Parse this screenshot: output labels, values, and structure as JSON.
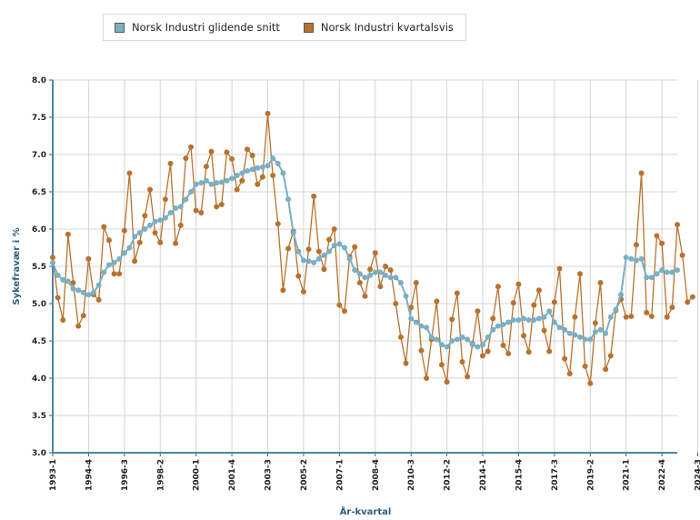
{
  "chart_data": {
    "type": "line",
    "xlabel": "År-kvartal",
    "ylabel": "Sykefravær i %",
    "ylim": [
      3.0,
      8.0
    ],
    "yticks": [
      "3.0",
      "3.5",
      "4.0",
      "4.5",
      "5.0",
      "5.5",
      "6.0",
      "6.5",
      "7.0",
      "7.5",
      "8.0"
    ],
    "xtick_labels": [
      "1993-1",
      "1994-4",
      "1996-3",
      "1998-2",
      "2000-1",
      "2001-4",
      "2003-3",
      "2005-2",
      "2007-1",
      "2008-4",
      "2010-3",
      "2012-2",
      "2014-1",
      "2015-4",
      "2017-3",
      "2019-2",
      "2021-1",
      "2022-4",
      "2024-3"
    ],
    "grid": true,
    "legend_position": "top-left",
    "series": [
      {
        "name": "Norsk Industri glidende snitt",
        "color": "#7aafc4",
        "values": [
          5.55,
          5.38,
          5.32,
          5.3,
          5.2,
          5.18,
          5.15,
          5.12,
          5.15,
          5.25,
          5.42,
          5.52,
          5.55,
          5.6,
          5.68,
          5.75,
          5.9,
          5.95,
          6.0,
          6.05,
          6.1,
          6.12,
          6.15,
          6.22,
          6.28,
          6.3,
          6.4,
          6.5,
          6.6,
          6.62,
          6.65,
          6.6,
          6.62,
          6.63,
          6.65,
          6.68,
          6.72,
          6.75,
          6.78,
          6.8,
          6.82,
          6.83,
          6.85,
          6.95,
          6.88,
          6.75,
          6.4,
          5.95,
          5.7,
          5.58,
          5.57,
          5.55,
          5.6,
          5.65,
          5.7,
          5.78,
          5.8,
          5.75,
          5.6,
          5.45,
          5.4,
          5.35,
          5.38,
          5.42,
          5.42,
          5.38,
          5.35,
          5.35,
          5.28,
          5.1,
          4.8,
          4.75,
          4.7,
          4.68,
          4.55,
          4.52,
          4.45,
          4.42,
          4.5,
          4.52,
          4.55,
          4.52,
          4.45,
          4.42,
          4.45,
          4.55,
          4.65,
          4.7,
          4.72,
          4.75,
          4.78,
          4.78,
          4.8,
          4.78,
          4.78,
          4.8,
          4.82,
          4.9,
          4.75,
          4.68,
          4.65,
          4.6,
          4.58,
          4.55,
          4.52,
          4.52,
          4.62,
          4.65,
          4.6,
          4.82,
          4.92,
          5.12,
          5.62,
          5.6,
          5.58,
          5.6,
          5.35,
          5.35,
          5.4,
          5.45,
          5.42,
          5.42,
          5.45
        ]
      },
      {
        "name": "Norsk Industri kvartalsvis",
        "color": "#b8722e",
        "values": [
          5.62,
          5.08,
          4.78,
          5.93,
          5.28,
          4.7,
          4.84,
          5.6,
          5.12,
          5.05,
          6.03,
          5.85,
          5.4,
          5.4,
          5.98,
          6.75,
          5.57,
          5.82,
          6.18,
          6.53,
          5.95,
          5.82,
          6.4,
          6.88,
          5.81,
          6.05,
          6.95,
          7.1,
          6.25,
          6.22,
          6.84,
          7.04,
          6.3,
          6.33,
          7.03,
          6.94,
          6.53,
          6.65,
          7.07,
          6.99,
          6.6,
          6.7,
          7.55,
          6.72,
          6.07,
          5.18,
          5.74,
          5.97,
          5.37,
          5.16,
          5.73,
          6.44,
          5.7,
          5.46,
          5.86,
          6.0,
          4.98,
          4.9,
          5.63,
          5.76,
          5.28,
          5.1,
          5.46,
          5.68,
          5.23,
          5.5,
          5.45,
          5.0,
          4.55,
          4.2,
          4.95,
          5.28,
          4.37,
          4.0,
          4.52,
          5.03,
          4.18,
          3.95,
          4.79,
          5.14,
          4.22,
          4.02,
          4.46,
          4.9,
          4.3,
          4.36,
          4.8,
          5.23,
          4.44,
          4.33,
          5.01,
          5.26,
          4.57,
          4.35,
          4.98,
          5.18,
          4.64,
          4.36,
          5.02,
          5.47,
          4.26,
          4.06,
          4.82,
          5.4,
          4.16,
          3.93,
          4.74,
          5.28,
          4.12,
          4.3,
          4.91,
          5.06,
          4.82,
          4.83,
          5.79,
          6.75,
          4.88,
          4.83,
          5.91,
          5.81,
          4.82,
          4.95,
          6.06,
          5.65,
          5.02,
          5.09
        ]
      }
    ]
  }
}
